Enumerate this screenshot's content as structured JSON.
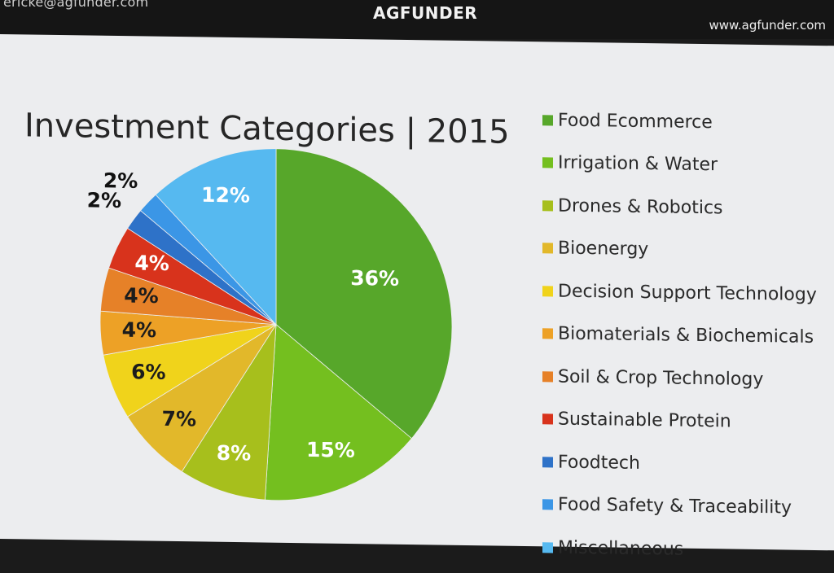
{
  "header": {
    "email_text": "ericke@agfunder.com",
    "logo_text": "AGFUNDER",
    "url_text": "www.agfunder.com"
  },
  "slide": {
    "title": "Investment Categories | 2015"
  },
  "chart_data": {
    "type": "pie",
    "title": "Investment Categories | 2015",
    "start_angle_deg": 0,
    "direction": "clockwise",
    "legend_placement": "right",
    "slices": [
      {
        "label": "Food Ecommerce",
        "value": 36,
        "value_label": "36%",
        "color": "#57a72a"
      },
      {
        "label": "Irrigation & Water",
        "value": 15,
        "value_label": "15%",
        "color": "#74bf1f"
      },
      {
        "label": "Drones & Robotics",
        "value": 8,
        "value_label": "8%",
        "color": "#a7bf1c"
      },
      {
        "label": "Bioenergy",
        "value": 7,
        "value_label": "7%",
        "color": "#e2b82a"
      },
      {
        "label": "Decision Support Technology",
        "value": 6,
        "value_label": "6%",
        "color": "#f0d31b"
      },
      {
        "label": "Biomaterials & Biochemicals",
        "value": 4,
        "value_label": "4%",
        "color": "#eda126"
      },
      {
        "label": "Soil & Crop Technology",
        "value": 4,
        "value_label": "4%",
        "color": "#e68128"
      },
      {
        "label": "Sustainable Protein",
        "value": 4,
        "value_label": "4%",
        "color": "#d8331c"
      },
      {
        "label": "Foodtech",
        "value": 2,
        "value_label": "2%",
        "color": "#2e72c8"
      },
      {
        "label": "Food Safety & Traceability",
        "value": 2,
        "value_label": "2%",
        "color": "#3b96e6"
      },
      {
        "label": "Miscellaneous",
        "value": 12,
        "value_label": "12%",
        "color": "#56b9f0"
      }
    ]
  }
}
